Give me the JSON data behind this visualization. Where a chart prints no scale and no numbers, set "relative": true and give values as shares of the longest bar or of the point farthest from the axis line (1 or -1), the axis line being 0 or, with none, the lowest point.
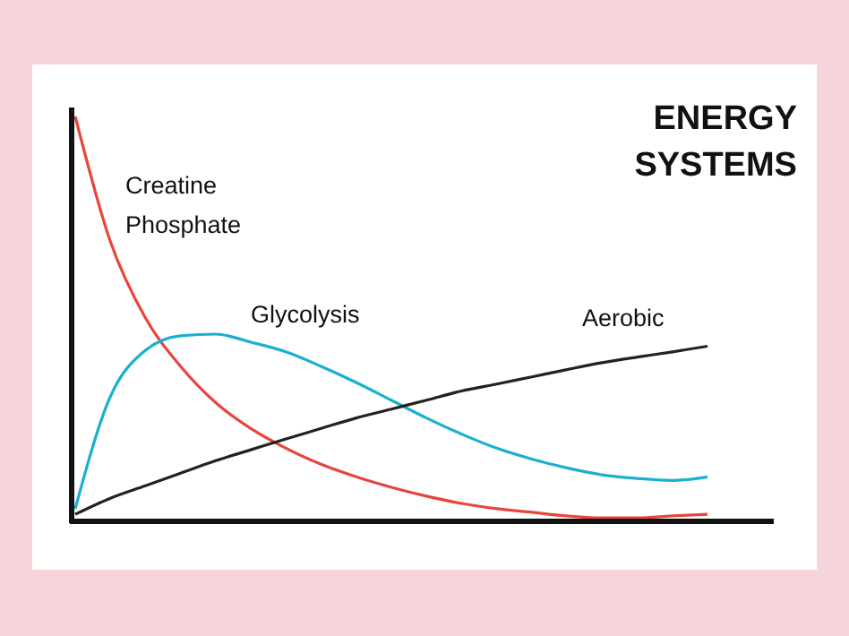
{
  "chart_data": {
    "type": "line",
    "title": "ENERGY SYSTEMS",
    "relative": true,
    "marker": "none",
    "line_style": "solid",
    "categories": [
      null,
      null,
      null,
      null,
      null,
      null,
      null,
      null,
      null,
      null,
      null,
      null,
      null,
      null,
      null,
      null,
      null,
      null,
      null
    ],
    "series": [
      {
        "name": "Creatine Phosphate",
        "color": "#e8453c",
        "values": [
          1.0,
          0.69,
          0.5,
          0.38,
          0.29,
          0.226,
          0.177,
          0.137,
          0.106,
          0.08,
          0.058,
          0.04,
          0.027,
          0.018,
          0.009,
          0.004,
          0.004,
          0.009,
          0.013
        ]
      },
      {
        "name": "Glycolysis",
        "color": "#1ab0d0",
        "values": [
          0.027,
          0.305,
          0.42,
          0.456,
          0.46,
          0.44,
          0.416,
          0.38,
          0.34,
          0.296,
          0.252,
          0.212,
          0.177,
          0.15,
          0.128,
          0.111,
          0.102,
          0.097,
          0.106
        ]
      },
      {
        "name": "Aerobic",
        "color": "#222222",
        "values": [
          0.013,
          0.053,
          0.084,
          0.115,
          0.146,
          0.173,
          0.2,
          0.226,
          0.252,
          0.274,
          0.296,
          0.319,
          0.336,
          0.354,
          0.372,
          0.389,
          0.403,
          0.416,
          0.43
        ]
      }
    ]
  }
}
